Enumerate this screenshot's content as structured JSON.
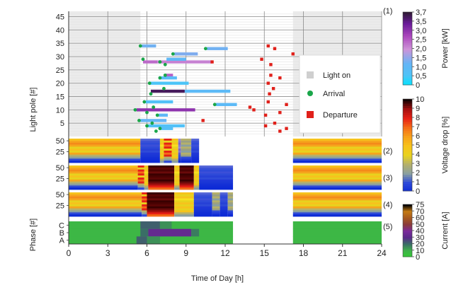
{
  "chart_data": {
    "type": "composite",
    "x_axis": {
      "label": "Time of Day [h]",
      "range": [
        0,
        24
      ],
      "ticks": [
        0,
        3,
        6,
        9,
        12,
        15,
        18,
        21,
        24
      ]
    },
    "panels": [
      {
        "id": "(1)",
        "type": "scatter",
        "ylabel": "Light pole [#]",
        "ylim": [
          0,
          47
        ],
        "yticks": [
          5,
          10,
          15,
          20,
          25,
          30,
          35,
          40,
          45
        ],
        "light_on_shading": [
          [
            0,
            5.5
          ],
          [
            17.2,
            24
          ]
        ],
        "legend": {
          "light_on": "Light on",
          "arrival": "Arrival",
          "departure": "Departure"
        },
        "charging_sessions": [
          {
            "pole": 34,
            "arrival": 5.5,
            "departure": 15.3
          },
          {
            "pole": 33,
            "arrival": 10.5,
            "departure": 15.8
          },
          {
            "pole": 31,
            "arrival": 8.0,
            "departure": 17.2
          },
          {
            "pole": 29,
            "arrival": 5.7,
            "departure": 14.8
          },
          {
            "pole": 28,
            "arrival": 7.0,
            "departure": 11.0
          },
          {
            "pole": 27,
            "arrival": 7.4,
            "departure": 15.5
          },
          {
            "pole": 23,
            "arrival": 7.4,
            "departure": 15.5
          },
          {
            "pole": 22,
            "arrival": 7.0,
            "departure": 16.2
          },
          {
            "pole": 20,
            "arrival": 6.2,
            "departure": 15.3
          },
          {
            "pole": 18,
            "arrival": 7.3,
            "departure": 15.7
          },
          {
            "pole": 16,
            "arrival": 6.3,
            "departure": 15.4
          },
          {
            "pole": 13,
            "arrival": 5.8,
            "departure": 15.3
          },
          {
            "pole": 12,
            "arrival": 11.2,
            "departure": 16.7
          },
          {
            "pole": 11,
            "arrival": 6.5,
            "departure": 13.9
          },
          {
            "pole": 10,
            "arrival": 5.1,
            "departure": 14.2
          },
          {
            "pole": 9,
            "arrival": 6.0,
            "departure": 16.2
          },
          {
            "pole": 8,
            "arrival": 6.8,
            "departure": 15.1
          },
          {
            "pole": 6,
            "arrival": 5.4,
            "departure": 10.3
          },
          {
            "pole": 5,
            "arrival": 6.4,
            "departure": 15.8
          },
          {
            "pole": 4,
            "arrival": 6.0,
            "departure": 15.1
          },
          {
            "pole": 3,
            "arrival": 7.0,
            "departure": 16.7
          },
          {
            "pole": 2,
            "arrival": 6.7,
            "departure": 16.2
          }
        ],
        "power_bars": [
          {
            "pole": 34,
            "start": 5.6,
            "end": 6.7,
            "power_kw": 1.2
          },
          {
            "pole": 33,
            "start": 10.6,
            "end": 12.2,
            "power_kw": 1.2
          },
          {
            "pole": 31,
            "start": 8.1,
            "end": 9.9,
            "power_kw": 1.3
          },
          {
            "pole": 28,
            "start": 5.7,
            "end": 6.8,
            "power_kw": 2.2
          },
          {
            "pole": 28,
            "start": 6.8,
            "end": 11.0,
            "power_kw": 2.0
          },
          {
            "pole": 29,
            "start": 7.5,
            "end": 9.0,
            "power_kw": 1.0
          },
          {
            "pole": 23,
            "start": 7.4,
            "end": 8.0,
            "power_kw": 2.3
          },
          {
            "pole": 22,
            "start": 6.9,
            "end": 8.3,
            "power_kw": 0.8
          },
          {
            "pole": 20,
            "start": 6.2,
            "end": 9.2,
            "power_kw": 0.5
          },
          {
            "pole": 17,
            "start": 6.3,
            "end": 8.9,
            "power_kw": 3.5
          },
          {
            "pole": 17,
            "start": 8.9,
            "end": 12.4,
            "power_kw": 0.9
          },
          {
            "pole": 13,
            "start": 5.9,
            "end": 8.0,
            "power_kw": 0.6
          },
          {
            "pole": 12,
            "start": 11.3,
            "end": 12.9,
            "power_kw": 0.9
          },
          {
            "pole": 10,
            "start": 5.2,
            "end": 9.7,
            "power_kw": 2.8
          },
          {
            "pole": 8,
            "start": 6.9,
            "end": 7.6,
            "power_kw": 1.0
          },
          {
            "pole": 6,
            "start": 5.5,
            "end": 7.5,
            "power_kw": 1.1
          },
          {
            "pole": 4,
            "start": 6.0,
            "end": 8.9,
            "power_kw": 0.6
          },
          {
            "pole": 3,
            "start": 7.0,
            "end": 8.0,
            "power_kw": 0.7
          }
        ],
        "colorbar": {
          "label": "Power [kW]",
          "range": [
            0,
            3.7
          ],
          "ticks": [
            "0",
            "0,5",
            "1,0",
            "1,5",
            "2,0",
            "2,5",
            "3,0",
            "3,5",
            "3,7"
          ]
        }
      },
      {
        "id": "(2)",
        "type": "heatmap",
        "metric": "Voltage drop [%]",
        "yticks": [
          25,
          50
        ],
        "active_window": [
          0,
          10
        ],
        "segments": [
          {
            "start": 0,
            "end": 5.5,
            "profile": "base"
          },
          {
            "start": 5.5,
            "end": 7.0,
            "profile": "blue"
          },
          {
            "start": 7.0,
            "end": 7.3,
            "profile": "yellow"
          },
          {
            "start": 7.3,
            "end": 7.9,
            "profile": "red"
          },
          {
            "start": 7.9,
            "end": 8.4,
            "profile": "yellow"
          },
          {
            "start": 8.4,
            "end": 8.6,
            "profile": "lilac"
          },
          {
            "start": 8.6,
            "end": 9.4,
            "profile": "olive"
          },
          {
            "start": 9.4,
            "end": 10.0,
            "profile": "blue"
          }
        ],
        "after": {
          "start": 17.2,
          "end": 24,
          "profile": "base"
        }
      },
      {
        "id": "(3)",
        "type": "heatmap",
        "metric": "Voltage drop [%]",
        "yticks": [
          25,
          50
        ],
        "segments": [
          {
            "start": 0,
            "end": 5.3,
            "profile": "base"
          },
          {
            "start": 5.3,
            "end": 5.8,
            "profile": "red"
          },
          {
            "start": 5.8,
            "end": 6.1,
            "profile": "yellow"
          },
          {
            "start": 6.1,
            "end": 8.1,
            "profile": "dark"
          },
          {
            "start": 8.1,
            "end": 8.5,
            "profile": "yellow"
          },
          {
            "start": 8.5,
            "end": 9.6,
            "profile": "dark"
          },
          {
            "start": 9.6,
            "end": 10.0,
            "profile": "yellow"
          },
          {
            "start": 10.0,
            "end": 12.6,
            "profile": "blue"
          }
        ],
        "after": {
          "start": 17.2,
          "end": 24,
          "profile": "base"
        }
      },
      {
        "id": "(4)",
        "type": "heatmap",
        "metric": "Voltage drop [%]",
        "yticks": [
          25,
          50
        ],
        "segments": [
          {
            "start": 0,
            "end": 5.6,
            "profile": "base"
          },
          {
            "start": 5.6,
            "end": 6.0,
            "profile": "red"
          },
          {
            "start": 6.0,
            "end": 8.1,
            "profile": "dark"
          },
          {
            "start": 8.1,
            "end": 9.6,
            "profile": "yellow"
          },
          {
            "start": 9.6,
            "end": 11.0,
            "profile": "blue"
          },
          {
            "start": 11.0,
            "end": 11.6,
            "profile": "olive"
          },
          {
            "start": 11.6,
            "end": 12.2,
            "profile": "blue"
          },
          {
            "start": 12.2,
            "end": 12.6,
            "profile": "olive"
          }
        ],
        "after": {
          "start": 17.2,
          "end": 24,
          "profile": "base"
        },
        "colorbar": {
          "label": "Voltage drop [%]",
          "range": [
            0,
            10
          ],
          "ticks": [
            "0",
            "1",
            "2",
            "3",
            "4",
            "5",
            "6",
            "7",
            "8",
            "9",
            "10"
          ]
        }
      },
      {
        "id": "(5)",
        "type": "heatmap",
        "metric": "Current [A]",
        "ylabel": "Phase [#]",
        "yticks": [
          "A",
          "B",
          "C"
        ],
        "rows": {
          "C": [
            {
              "start": 0,
              "end": 12.6,
              "value": 8
            },
            {
              "start": 5.5,
              "end": 7.0,
              "value": 22
            },
            {
              "start": 7.0,
              "end": 7.9,
              "value": 15
            },
            {
              "start": 17.2,
              "end": 24,
              "value": 8
            }
          ],
          "B": [
            {
              "start": 0,
              "end": 12.6,
              "value": 8
            },
            {
              "start": 5.5,
              "end": 6.1,
              "value": 20
            },
            {
              "start": 6.1,
              "end": 9.4,
              "value": 33
            },
            {
              "start": 9.4,
              "end": 10.0,
              "value": 18
            },
            {
              "start": 17.2,
              "end": 24,
              "value": 8
            }
          ],
          "A": [
            {
              "start": 0,
              "end": 12.6,
              "value": 8
            },
            {
              "start": 5.2,
              "end": 6.0,
              "value": 22
            },
            {
              "start": 6.0,
              "end": 7.0,
              "value": 15
            },
            {
              "start": 17.2,
              "end": 24,
              "value": 8
            }
          ]
        },
        "colorbar": {
          "label": "Current [A]",
          "range": [
            0,
            80
          ],
          "ticks": [
            "0",
            "10",
            "20",
            "30",
            "40",
            "50",
            "60",
            "70",
            "75"
          ]
        }
      }
    ]
  }
}
